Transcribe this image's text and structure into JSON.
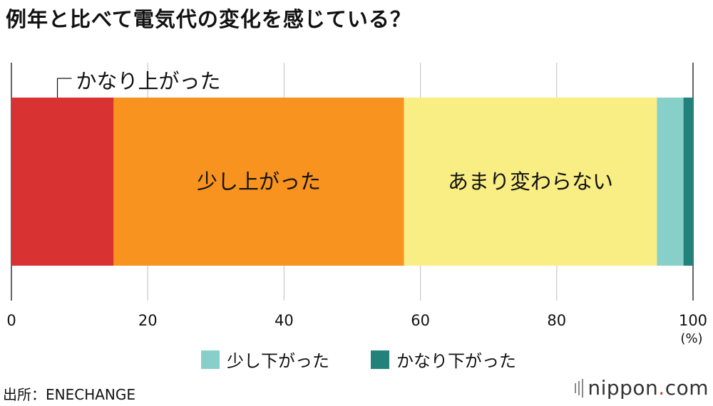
{
  "title": "例年と比べて電気代の変化を感じている？",
  "chart_data": {
    "type": "bar",
    "orientation": "horizontal-stacked",
    "title": "例年と比べて電気代の変化を感じている？",
    "xlabel": "",
    "ylabel": "",
    "unit_label": "(%)",
    "xlim": [
      0,
      100
    ],
    "xticks": [
      0,
      20,
      40,
      60,
      80,
      100
    ],
    "grid": true,
    "legend_placement": "bottom",
    "series": [
      {
        "name": "かなり上がった",
        "value": 15.0,
        "color": "#d93232"
      },
      {
        "name": "少し上がった",
        "value": 42.6,
        "color": "#f7931e"
      },
      {
        "name": "あまり変わらない",
        "value": 37.1,
        "color": "#f9ee84"
      },
      {
        "name": "少し下がった",
        "value": 3.9,
        "color": "#87cfc9"
      },
      {
        "name": "かなり下がった",
        "value": 1.4,
        "color": "#22827b"
      }
    ]
  },
  "source": "出所：ENECHANGE",
  "brand": {
    "name": "nippon",
    "dot": ".",
    "tld": "com"
  }
}
